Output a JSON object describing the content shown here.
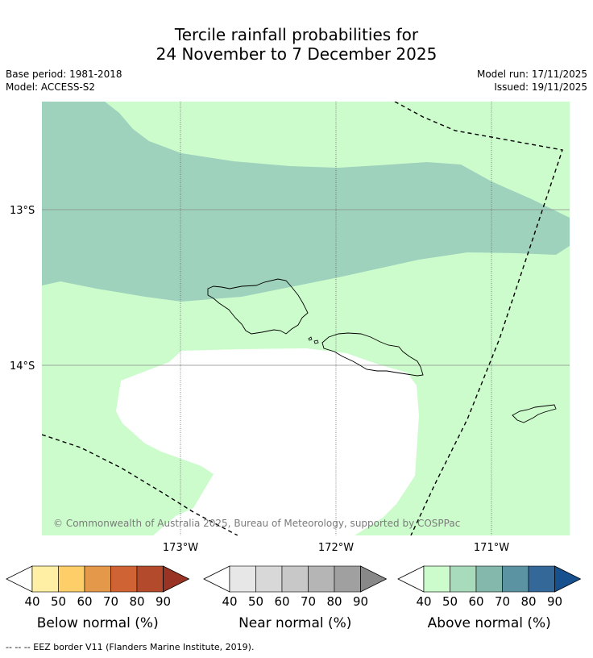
{
  "title": {
    "line1": "Tercile rainfall probabilities for",
    "line2": "24 November to 7 December 2025"
  },
  "meta": {
    "base_period": "Base period: 1981-2018",
    "model": "Model: ACCESS-S2",
    "model_run": "Model run: 17/11/2025",
    "issued": "Issued: 19/11/2025"
  },
  "axes": {
    "lat_labels": [
      "13°S",
      "14°S"
    ],
    "lon_labels": [
      "173°W",
      "172°W",
      "171°W"
    ]
  },
  "map": {
    "copyright": "© Commonwealth of Australia 2025, Bureau of Meteorology, supported by COSPPac",
    "colors": {
      "above_50": "#ccfccc",
      "above_60": "#9ed2bc",
      "land_outline": "#000000"
    }
  },
  "legends": [
    {
      "label": "Below normal (%)",
      "ticks": [
        "40",
        "50",
        "60",
        "70",
        "80",
        "90"
      ],
      "colors": [
        "#feefa4",
        "#fecf68",
        "#e4984a",
        "#cf6333",
        "#b34a2b",
        "#993424"
      ]
    },
    {
      "label": "Near normal (%)",
      "ticks": [
        "40",
        "50",
        "60",
        "70",
        "80",
        "90"
      ],
      "colors": [
        "#e7e7e7",
        "#d8d8d8",
        "#c8c8c8",
        "#b5b5b5",
        "#a0a0a0",
        "#888888"
      ]
    },
    {
      "label": "Above normal (%)",
      "ticks": [
        "40",
        "50",
        "60",
        "70",
        "80",
        "90"
      ],
      "colors": [
        "#ccfccc",
        "#a8dbbc",
        "#84b8ad",
        "#5c93a2",
        "#346898",
        "#16508e"
      ]
    }
  ],
  "footnote": "--  --  -- EEZ border V11 (Flanders Marine Institute, 2019)."
}
